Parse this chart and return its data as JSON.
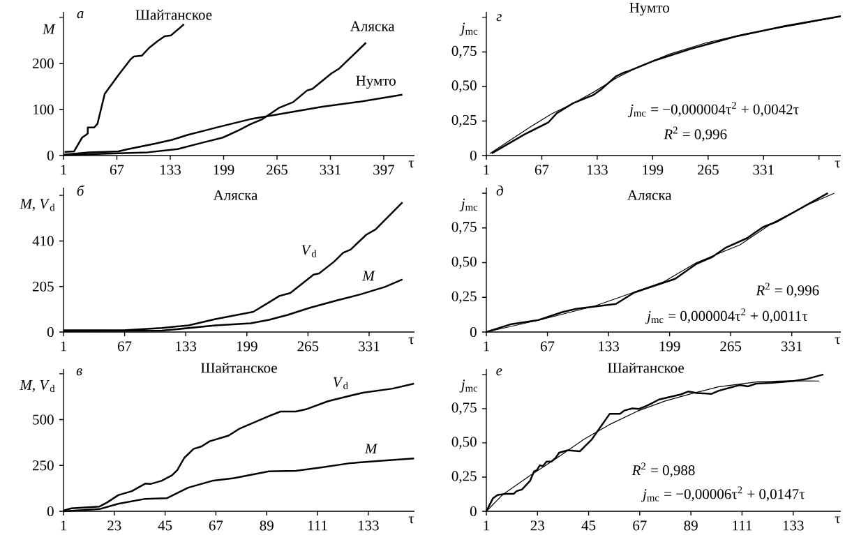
{
  "chart_data": [
    {
      "type": "line",
      "xlabel": "τ",
      "ylabel": "*M*",
      "xlim": [
        1,
        435
      ],
      "ylim": [
        0,
        312
      ],
      "xticks": [
        1,
        67,
        133,
        199,
        265,
        331,
        397
      ],
      "yticks": [
        0,
        100,
        200,
        {
          "value": 300,
          "label": null
        }
      ],
      "annotations": [
        "а"
      ],
      "series": [
        {
          "name": "Шайтанское",
          "color": "#000000",
          "x": [
            2.3,
            14,
            24,
            29,
            31,
            31,
            39,
            43,
            52,
            69,
            84,
            88,
            98,
            107,
            117,
            126,
            134,
            150
          ],
          "values": [
            8,
            9,
            39,
            45,
            48,
            61,
            61,
            69,
            134,
            175,
            209,
            215,
            217,
            234,
            248,
            259,
            261,
            285
          ]
        },
        {
          "name": "Аляска",
          "color": "#000000",
          "x": [
            1,
            55,
            105,
            142,
            175,
            198,
            218,
            232,
            247,
            268,
            285,
            302,
            309,
            332,
            342,
            375
          ],
          "values": [
            1,
            4,
            7,
            14,
            29,
            39,
            55,
            68,
            79,
            104,
            116,
            141,
            145,
            178,
            189,
            245
          ]
        },
        {
          "name": "Нумто",
          "color": "#000000",
          "x": [
            1,
            32,
            69,
            81,
            115,
            135,
            155,
            175,
            195,
            232,
            265,
            321,
            368,
            420
          ],
          "values": [
            2,
            7,
            9,
            14,
            26,
            34,
            45,
            54,
            63,
            79,
            89,
            106,
            117,
            132
          ]
        }
      ]
    },
    {
      "type": "line",
      "title": "Нумто",
      "xlabel": "τ",
      "ylabel": "*j*$_{mc}$",
      "xlim": [
        1,
        423
      ],
      "ylim": [
        0,
        1.04
      ],
      "xticks": [
        1,
        67,
        133,
        199,
        265,
        331,
        {
          "value": 397,
          "label": null
        }
      ],
      "yticks": [
        0,
        {
          "value": 0.25,
          "label": "0,25"
        },
        {
          "value": 0.5,
          "label": "0,50"
        },
        {
          "value": 0.75,
          "label": "0,75"
        },
        {
          "value": 1,
          "label": null
        }
      ],
      "annotations": [
        "г",
        "*j*$_{mc}$ = −0,000004τ$^{2}$ + 0,0042τ",
        "*R*$^{2}$ = 0,996"
      ],
      "series": [
        {
          "color": "#000000",
          "x": [
            7.4,
            46.5,
            75,
            85,
            104,
            128,
            138,
            155,
            165,
            171,
            200,
            245,
            300,
            357,
            423
          ],
          "values": [
            0.016,
            0.153,
            0.241,
            0.307,
            0.378,
            0.437,
            0.48,
            0.572,
            0.601,
            0.613,
            0.685,
            0.773,
            0.865,
            0.938,
            1.008
          ]
        },
        {
          "color": "#000000",
          "x": [
            5,
            53,
            79,
            104,
            129,
            155,
            180,
            219,
            261,
            309,
            373,
            423
          ],
          "values": [
            0.014,
            0.206,
            0.303,
            0.376,
            0.46,
            0.558,
            0.636,
            0.734,
            0.813,
            0.881,
            0.95,
            1.008
          ]
        }
      ]
    },
    {
      "type": "line",
      "title": "Аляска",
      "xlabel": "τ",
      "ylabel": "*M*, *V*$_{d}$",
      "xlim": [
        1,
        380
      ],
      "ylim": [
        0,
        650
      ],
      "xticks": [
        1,
        67,
        133,
        199,
        265,
        331
      ],
      "yticks": [
        0,
        205,
        410,
        {
          "value": 615,
          "label": null
        }
      ],
      "annotations": [
        "б"
      ],
      "series": [
        {
          "name": "*V*$_{d}$",
          "color": "#000000",
          "x": [
            1,
            66,
            107,
            136,
            165,
            206,
            223,
            234,
            246,
            271,
            277,
            293,
            303,
            311,
            328,
            338,
            367
          ],
          "values": [
            8,
            8,
            18,
            30,
            58,
            91,
            134,
            162,
            176,
            258,
            264,
            316,
            357,
            371,
            438,
            462,
            584
          ]
        },
        {
          "name": "*M*",
          "color": "#000000",
          "x": [
            1,
            107,
            165,
            203,
            223,
            243,
            267,
            296,
            322,
            348,
            367
          ],
          "values": [
            4,
            6,
            30,
            39,
            55,
            77,
            109,
            142,
            170,
            203,
            237
          ]
        }
      ]
    },
    {
      "type": "line",
      "title": "Аляска",
      "xlabel": "τ",
      "ylabel": "*j*$_{mc}$",
      "xlim": [
        1,
        384
      ],
      "ylim": [
        0,
        1.04
      ],
      "xticks": [
        1,
        67,
        133,
        199,
        265,
        331
      ],
      "yticks": [
        0,
        {
          "value": 0.25,
          "label": "0,25"
        },
        {
          "value": 0.5,
          "label": "0,50"
        },
        {
          "value": 0.75,
          "label": "0,75"
        },
        {
          "value": 1,
          "label": null
        }
      ],
      "annotations": [
        "д",
        "*R*$^{2}$ = 0,996",
        "*j*$_{mc}$ = 0,000004τ$^{2}$ + 0,0011τ"
      ],
      "series": [
        {
          "color": "#000000",
          "x": [
            1,
            28,
            57,
            83,
            98,
            118,
            141,
            161,
            205,
            228,
            245,
            260,
            283,
            292,
            300,
            315,
            370
          ],
          "values": [
            0,
            0.057,
            0.086,
            0.143,
            0.167,
            0.183,
            0.202,
            0.285,
            0.383,
            0.491,
            0.54,
            0.609,
            0.677,
            0.72,
            0.756,
            0.795,
            1.0
          ]
        },
        {
          "color": "#000000",
          "x": [
            1,
            63,
            118,
            193,
            228,
            275,
            310,
            347,
            377
          ],
          "values": [
            0,
            0.094,
            0.187,
            0.363,
            0.5,
            0.628,
            0.785,
            0.913,
            1.0
          ]
        }
      ]
    },
    {
      "type": "line",
      "title": "Шайтанское",
      "xlabel": "τ",
      "ylabel": "*M*, *V*$_{d}$",
      "xlim": [
        1,
        153
      ],
      "ylim": [
        0,
        776
      ],
      "xticks": [
        1,
        23,
        45,
        67,
        89,
        111,
        133
      ],
      "yticks": [
        0,
        250,
        500,
        {
          "value": 750,
          "label": null
        }
      ],
      "annotations": [
        "в"
      ],
      "series": [
        {
          "name": "*V*$_{d}$",
          "color": "#000000",
          "x": [
            1,
            4.4,
            16.6,
            20,
            24.7,
            30.6,
            36.4,
            38.7,
            43.4,
            48,
            50.3,
            53.3,
            57.3,
            60.8,
            64.3,
            72.5,
            77,
            89.9,
            95,
            101.6,
            106,
            115.5,
            122.5,
            130.7,
            143.5,
            152.8
          ],
          "values": [
            4,
            16,
            26,
            49,
            88,
            110,
            151,
            149,
            166,
            196,
            225,
            291,
            340,
            354,
            382,
            413,
            449,
            519,
            544,
            544,
            556,
            600,
            622,
            647,
            669,
            696
          ]
        },
        {
          "name": "*M*",
          "color": "#000000",
          "x": [
            1,
            16.6,
            24.7,
            36.4,
            45.7,
            55,
            65.4,
            74.8,
            89.9,
            101.6,
            113,
            124.9,
            138.8,
            152.8
          ],
          "values": [
            0,
            12,
            41,
            68,
            71,
            129,
            166,
            181,
            218,
            221,
            240,
            262,
            276,
            288
          ]
        }
      ]
    },
    {
      "type": "line",
      "title": "Шайтанское",
      "xlabel": "τ",
      "ylabel": "*j*$_{mc}$",
      "xlim": [
        1,
        153.5
      ],
      "ylim": [
        0,
        1.04
      ],
      "xticks": [
        1,
        23,
        45,
        67,
        89,
        111,
        133
      ],
      "yticks": [
        0,
        {
          "value": 0.25,
          "label": "0,25"
        },
        {
          "value": 0.5,
          "label": "0,50"
        },
        {
          "value": 0.75,
          "label": "0,75"
        },
        {
          "value": 1,
          "label": null
        }
      ],
      "annotations": [
        "е",
        "*R*$^{2}$ = 0,988",
        "*j*$_{mc}$ = −0,00006τ$^{2}$ + 0,0147τ"
      ],
      "series": [
        {
          "color": "#000000",
          "x": [
            1,
            3.8,
            5.9,
            9.3,
            12.8,
            14,
            16.3,
            19.8,
            21.5,
            22.7,
            24,
            25.3,
            26.9,
            29,
            30.8,
            32.3,
            36,
            41.2,
            46.4,
            54.1,
            58.5,
            60.3,
            63.8,
            66.7,
            69.6,
            71.9,
            75.3,
            84.6,
            88,
            91.5,
            97.9,
            100.8,
            110,
            113.6,
            117,
            124,
            133.2,
            139,
            146
          ],
          "values": [
            0,
            0.094,
            0.12,
            0.128,
            0.128,
            0.147,
            0.159,
            0.222,
            0.291,
            0.3,
            0.336,
            0.33,
            0.363,
            0.363,
            0.39,
            0.428,
            0.446,
            0.438,
            0.526,
            0.713,
            0.713,
            0.736,
            0.752,
            0.748,
            0.768,
            0.787,
            0.817,
            0.854,
            0.876,
            0.864,
            0.858,
            0.88,
            0.923,
            0.913,
            0.933,
            0.939,
            0.952,
            0.968,
            1.0
          ]
        },
        {
          "color": "#000000",
          "x": [
            1,
            8.2,
            19.8,
            31.3,
            43,
            54.5,
            66,
            77.7,
            89.2,
            100.8,
            118.2,
            133.2,
            144.2
          ],
          "values": [
            0,
            0.124,
            0.261,
            0.389,
            0.526,
            0.638,
            0.732,
            0.805,
            0.86,
            0.909,
            0.948,
            0.954,
            0.952
          ]
        }
      ]
    }
  ]
}
